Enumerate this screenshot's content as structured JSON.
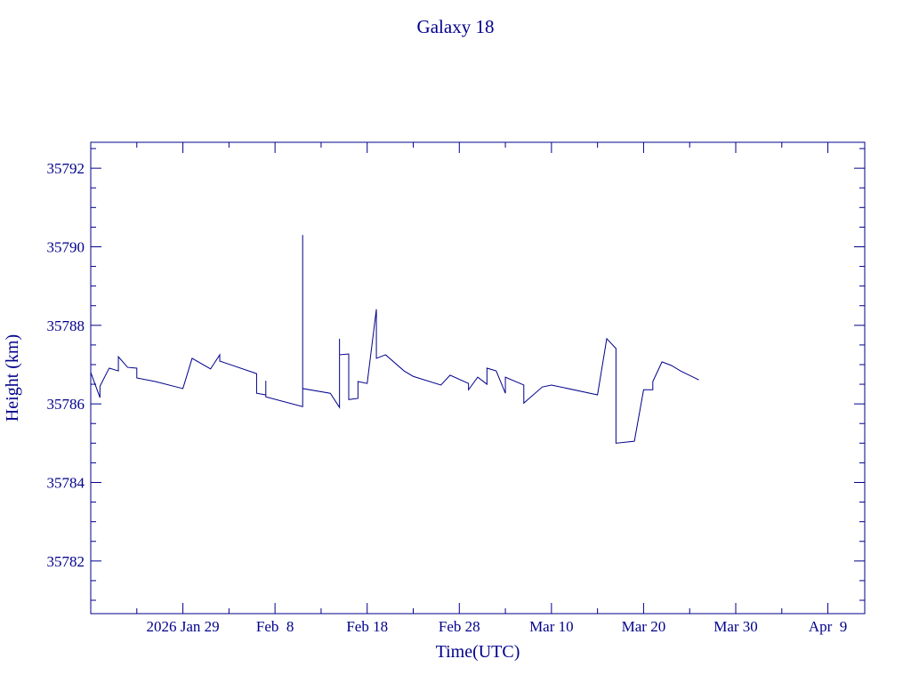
{
  "chart_data": {
    "type": "line",
    "title": "Galaxy 18",
    "x_label": "Time(UTC)",
    "y_label": "Height (km)",
    "color": "#00008b",
    "xlim": [
      "2026-01-19",
      "2026-04-13"
    ],
    "xticks": [
      {
        "value": "2026-01-29",
        "label": "2026 Jan 29"
      },
      {
        "value": "2026-02-08",
        "label": "Feb  8"
      },
      {
        "value": "2026-02-18",
        "label": "Feb 18"
      },
      {
        "value": "2026-02-28",
        "label": "Feb 28"
      },
      {
        "value": "2026-03-10",
        "label": "Mar 10"
      },
      {
        "value": "2026-03-20",
        "label": "Mar 20"
      },
      {
        "value": "2026-03-30",
        "label": "Mar 30"
      },
      {
        "value": "2026-04-09",
        "label": "Apr  9"
      }
    ],
    "xminorticks": [
      "2026-01-24",
      "2026-02-03",
      "2026-02-13",
      "2026-02-23",
      "2026-03-05",
      "2026-03-15",
      "2026-03-25",
      "2026-04-04"
    ],
    "ylim": [
      35780.66,
      35792.66
    ],
    "yticks": [
      35782,
      35784,
      35786,
      35788,
      35790,
      35792
    ],
    "yminorticks": [
      35781,
      35781.5,
      35782.5,
      35783,
      35783.5,
      35784.5,
      35785,
      35785.5,
      35786.5,
      35787,
      35787.5,
      35788.5,
      35789,
      35789.5,
      35790.5,
      35791,
      35791.5,
      35792.5
    ],
    "x": [
      "2026-01-19",
      "2026-01-20",
      "2026-01-20",
      "2026-01-21",
      "2026-01-22",
      "2026-01-22",
      "2026-01-23",
      "2026-01-24",
      "2026-01-24",
      "2026-01-26",
      "2026-01-29",
      "2026-01-30",
      "2026-02-01",
      "2026-02-02",
      "2026-02-02",
      "2026-02-06",
      "2026-02-06",
      "2026-02-07",
      "2026-02-07",
      "2026-02-07",
      "2026-02-11",
      "2026-02-11",
      "2026-02-11",
      "2026-02-14",
      "2026-02-15",
      "2026-02-15",
      "2026-02-15",
      "2026-02-16",
      "2026-02-16",
      "2026-02-17",
      "2026-02-17",
      "2026-02-18",
      "2026-02-19",
      "2026-02-19",
      "2026-02-20",
      "2026-02-22",
      "2026-02-23",
      "2026-02-26",
      "2026-02-27",
      "2026-03-01",
      "2026-03-01",
      "2026-03-02",
      "2026-03-03",
      "2026-03-03",
      "2026-03-04",
      "2026-03-05",
      "2026-03-05",
      "2026-03-07",
      "2026-03-07",
      "2026-03-09",
      "2026-03-10",
      "2026-03-15",
      "2026-03-16",
      "2026-03-17",
      "2026-03-17",
      "2026-03-19",
      "2026-03-20",
      "2026-03-21",
      "2026-03-21",
      "2026-03-22",
      "2026-03-23",
      "2026-03-24",
      "2026-03-26"
    ],
    "values": [
      35786.8,
      35786.16,
      35786.45,
      35786.91,
      35786.84,
      35787.2,
      35786.93,
      35786.91,
      35786.66,
      35786.57,
      35786.39,
      35787.16,
      35786.89,
      35787.25,
      35787.09,
      35786.77,
      35786.27,
      35786.23,
      35786.59,
      35786.18,
      35785.93,
      35790.3,
      35786.39,
      35786.27,
      35785.91,
      35787.66,
      35787.25,
      35787.27,
      35786.11,
      35786.14,
      35786.57,
      35786.52,
      35788.41,
      35787.16,
      35787.25,
      35786.84,
      35786.7,
      35786.48,
      35786.73,
      35786.52,
      35786.36,
      35786.68,
      35786.5,
      35786.91,
      35786.84,
      35786.27,
      35786.68,
      35786.48,
      35786.02,
      35786.43,
      35786.48,
      35786.23,
      35787.66,
      35787.41,
      35785.0,
      35785.05,
      35786.36,
      35786.36,
      35786.57,
      35787.07,
      35786.98,
      35786.84,
      35786.61
    ]
  }
}
